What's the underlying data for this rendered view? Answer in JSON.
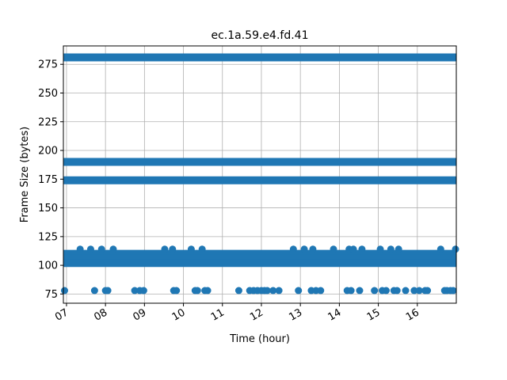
{
  "chart_data": {
    "type": "scatter",
    "title": "ec.1a.59.e4.fd.41",
    "xlabel": "Time (hour)",
    "ylabel": "Frame Size (bytes)",
    "xlim": [
      6.92,
      17.0
    ],
    "ylim": [
      67,
      291
    ],
    "grid": true,
    "legend": "none",
    "color": "#1f77b4",
    "x_ticks": [
      {
        "value": 7,
        "label": "07"
      },
      {
        "value": 8,
        "label": "08"
      },
      {
        "value": 9,
        "label": "09"
      },
      {
        "value": 10,
        "label": "10"
      },
      {
        "value": 11,
        "label": "11"
      },
      {
        "value": 12,
        "label": "12"
      },
      {
        "value": 13,
        "label": "13"
      },
      {
        "value": 14,
        "label": "14"
      },
      {
        "value": 15,
        "label": "15"
      },
      {
        "value": 16,
        "label": "16"
      }
    ],
    "y_ticks": [
      {
        "value": 75,
        "label": "75"
      },
      {
        "value": 100,
        "label": "100"
      },
      {
        "value": 125,
        "label": "125"
      },
      {
        "value": 150,
        "label": "150"
      },
      {
        "value": 175,
        "label": "175"
      },
      {
        "value": 200,
        "label": "200"
      },
      {
        "value": 225,
        "label": "225"
      },
      {
        "value": 250,
        "label": "250"
      },
      {
        "value": 275,
        "label": "275"
      }
    ],
    "bands": [
      {
        "y": 281,
        "x_start": 6.92,
        "x_end": 17.0
      },
      {
        "y": 190,
        "x_start": 6.92,
        "x_end": 17.0
      },
      {
        "y": 174,
        "x_start": 6.92,
        "x_end": 17.0
      },
      {
        "y": 110,
        "x_start": 6.92,
        "x_end": 17.0
      },
      {
        "y": 106,
        "x_start": 6.92,
        "x_end": 17.0
      },
      {
        "y": 102,
        "x_start": 6.92,
        "x_end": 17.0
      }
    ],
    "points": [
      {
        "x": 6.95,
        "y": 78
      },
      {
        "x": 7.35,
        "y": 114
      },
      {
        "x": 7.62,
        "y": 114
      },
      {
        "x": 7.72,
        "y": 78
      },
      {
        "x": 7.9,
        "y": 114
      },
      {
        "x": 8.0,
        "y": 78
      },
      {
        "x": 8.06,
        "y": 78
      },
      {
        "x": 8.2,
        "y": 114
      },
      {
        "x": 8.75,
        "y": 78
      },
      {
        "x": 8.88,
        "y": 78
      },
      {
        "x": 8.98,
        "y": 78
      },
      {
        "x": 9.52,
        "y": 114
      },
      {
        "x": 9.72,
        "y": 114
      },
      {
        "x": 9.75,
        "y": 78
      },
      {
        "x": 9.82,
        "y": 78
      },
      {
        "x": 10.2,
        "y": 114
      },
      {
        "x": 10.3,
        "y": 78
      },
      {
        "x": 10.36,
        "y": 78
      },
      {
        "x": 10.48,
        "y": 114
      },
      {
        "x": 10.55,
        "y": 78
      },
      {
        "x": 10.62,
        "y": 78
      },
      {
        "x": 11.42,
        "y": 78
      },
      {
        "x": 11.7,
        "y": 78
      },
      {
        "x": 11.8,
        "y": 78
      },
      {
        "x": 11.9,
        "y": 78
      },
      {
        "x": 12.0,
        "y": 78
      },
      {
        "x": 12.08,
        "y": 78
      },
      {
        "x": 12.15,
        "y": 78
      },
      {
        "x": 12.3,
        "y": 78
      },
      {
        "x": 12.45,
        "y": 78
      },
      {
        "x": 12.82,
        "y": 114
      },
      {
        "x": 12.95,
        "y": 78
      },
      {
        "x": 13.1,
        "y": 114
      },
      {
        "x": 13.28,
        "y": 78
      },
      {
        "x": 13.32,
        "y": 114
      },
      {
        "x": 13.4,
        "y": 78
      },
      {
        "x": 13.52,
        "y": 78
      },
      {
        "x": 13.85,
        "y": 114
      },
      {
        "x": 14.2,
        "y": 78
      },
      {
        "x": 14.25,
        "y": 114
      },
      {
        "x": 14.3,
        "y": 78
      },
      {
        "x": 14.36,
        "y": 114
      },
      {
        "x": 14.52,
        "y": 78
      },
      {
        "x": 14.58,
        "y": 114
      },
      {
        "x": 14.9,
        "y": 78
      },
      {
        "x": 15.05,
        "y": 114
      },
      {
        "x": 15.1,
        "y": 78
      },
      {
        "x": 15.2,
        "y": 78
      },
      {
        "x": 15.32,
        "y": 114
      },
      {
        "x": 15.4,
        "y": 78
      },
      {
        "x": 15.48,
        "y": 78
      },
      {
        "x": 15.52,
        "y": 114
      },
      {
        "x": 15.7,
        "y": 78
      },
      {
        "x": 15.92,
        "y": 78
      },
      {
        "x": 16.05,
        "y": 78
      },
      {
        "x": 16.2,
        "y": 78
      },
      {
        "x": 16.26,
        "y": 78
      },
      {
        "x": 16.6,
        "y": 114
      },
      {
        "x": 16.7,
        "y": 78
      },
      {
        "x": 16.76,
        "y": 78
      },
      {
        "x": 16.85,
        "y": 78
      },
      {
        "x": 16.92,
        "y": 78
      },
      {
        "x": 16.98,
        "y": 114
      }
    ]
  }
}
